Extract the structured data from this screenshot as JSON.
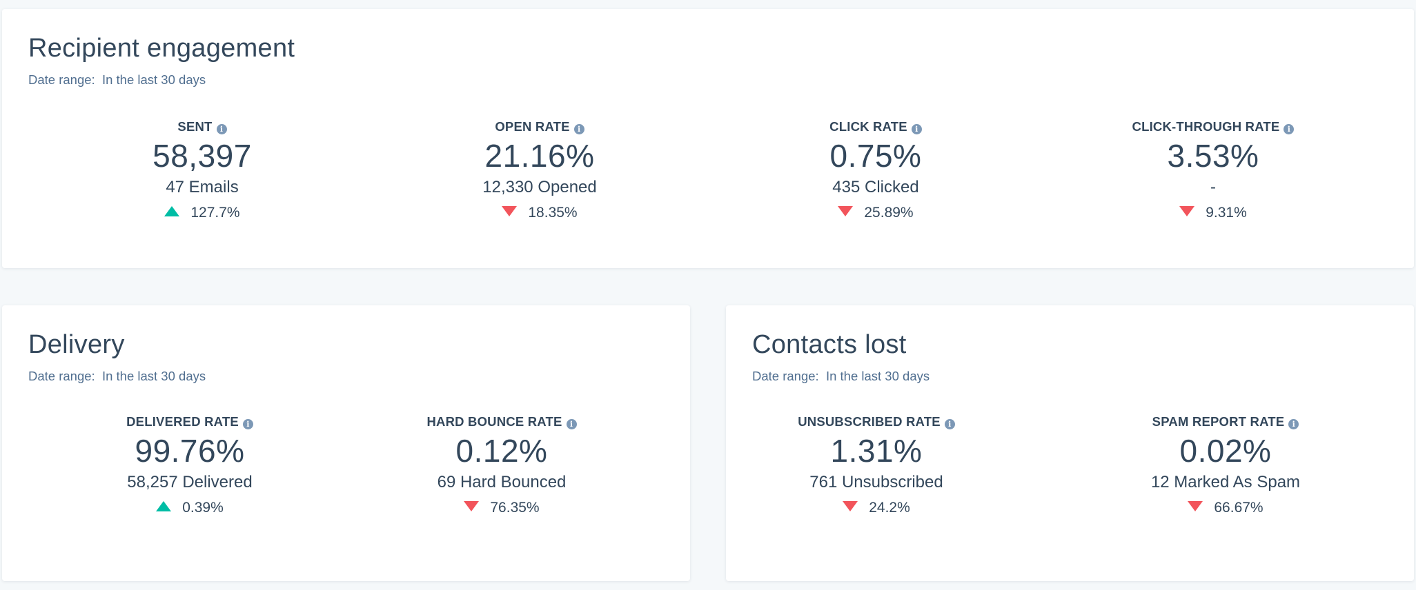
{
  "colors": {
    "background": "#f5f8fa",
    "card": "#ffffff",
    "text": "#33475b",
    "muted": "#516f90",
    "info_icon": "#7c98b6",
    "positive": "#00bda5",
    "negative": "#f2545b"
  },
  "engagement": {
    "title": "Recipient engagement",
    "date_range": "Date range:  In the last 30 days",
    "stats": [
      {
        "label": "SENT",
        "value": "58,397",
        "sub": "47 Emails",
        "change": "127.7%",
        "direction": "up"
      },
      {
        "label": "OPEN RATE",
        "value": "21.16%",
        "sub": "12,330 Opened",
        "change": "18.35%",
        "direction": "down"
      },
      {
        "label": "CLICK RATE",
        "value": "0.75%",
        "sub": "435 Clicked",
        "change": "25.89%",
        "direction": "down"
      },
      {
        "label": "CLICK-THROUGH RATE",
        "value": "3.53%",
        "sub": "-",
        "change": "9.31%",
        "direction": "down"
      }
    ]
  },
  "delivery": {
    "title": "Delivery",
    "date_range": "Date range:  In the last 30 days",
    "stats": [
      {
        "label": "DELIVERED RATE",
        "value": "99.76%",
        "sub": "58,257 Delivered",
        "change": "0.39%",
        "direction": "up"
      },
      {
        "label": "HARD BOUNCE RATE",
        "value": "0.12%",
        "sub": "69 Hard Bounced",
        "change": "76.35%",
        "direction": "down"
      }
    ]
  },
  "contacts_lost": {
    "title": "Contacts lost",
    "date_range": "Date range:  In the last 30 days",
    "stats": [
      {
        "label": "UNSUBSCRIBED RATE",
        "value": "1.31%",
        "sub": "761 Unsubscribed",
        "change": "24.2%",
        "direction": "down"
      },
      {
        "label": "SPAM REPORT RATE",
        "value": "0.02%",
        "sub": "12 Marked As Spam",
        "change": "66.67%",
        "direction": "down"
      }
    ]
  }
}
